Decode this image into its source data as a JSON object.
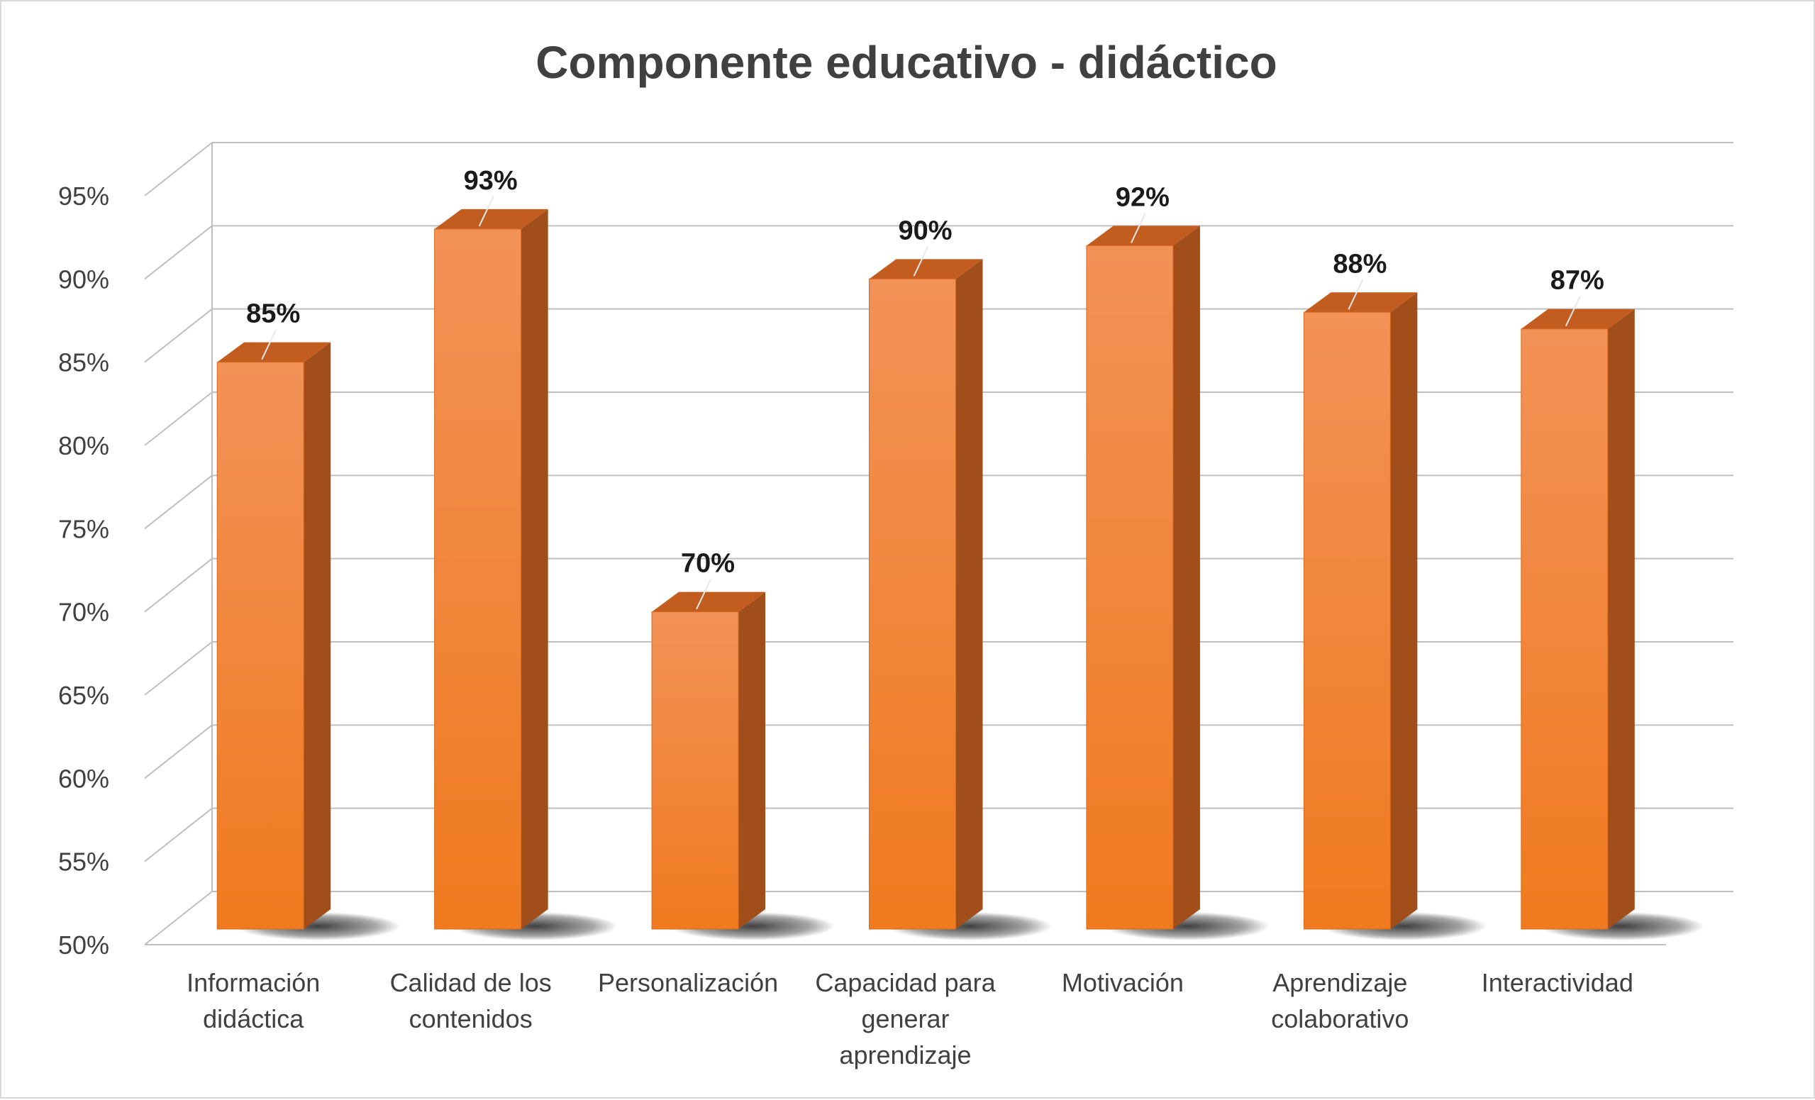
{
  "chart_data": {
    "type": "bar",
    "title": "Componente educativo - didáctico",
    "categories": [
      [
        "Información",
        "didáctica"
      ],
      [
        "Calidad de los",
        "contenidos"
      ],
      [
        "Personalización"
      ],
      [
        "Capacidad para",
        "generar",
        "aprendizaje"
      ],
      [
        "Motivación"
      ],
      [
        "Aprendizaje",
        "colaborativo"
      ],
      [
        "Interactividad"
      ]
    ],
    "values": [
      85,
      93,
      70,
      90,
      92,
      88,
      87
    ],
    "data_labels": [
      "85%",
      "93%",
      "70%",
      "90%",
      "92%",
      "88%",
      "87%"
    ],
    "ylim": [
      50,
      95
    ],
    "y_ticks": [
      "50%",
      "55%",
      "60%",
      "65%",
      "70%",
      "75%",
      "80%",
      "85%",
      "90%",
      "95%"
    ],
    "style": "3d-column",
    "grid": true,
    "legend": "none",
    "colors": {
      "bar_front_top": "#f39257",
      "bar_front_bottom": "#f07a1f",
      "bar_side": "#a24e1a",
      "bar_top": "#c25c1f",
      "grid": "#bfbfbf",
      "text": "#404040"
    }
  }
}
